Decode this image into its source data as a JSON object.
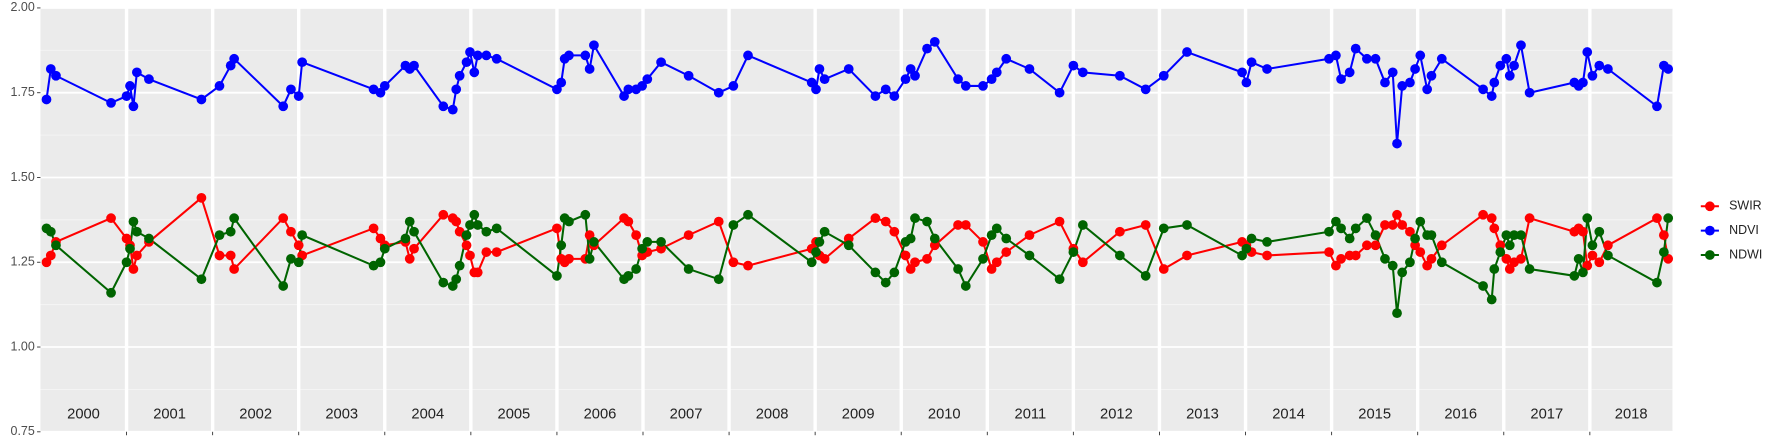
{
  "chart_data": {
    "type": "line",
    "x": [
      2000.07,
      2000.12,
      2000.18,
      2000.82,
      2001.0,
      2001.04,
      2001.08,
      2001.12,
      2001.26,
      2001.87,
      2002.08,
      2002.21,
      2002.25,
      2002.82,
      2002.91,
      2003.0,
      2003.04,
      2003.87,
      2003.95,
      2004.0,
      2004.24,
      2004.29,
      2004.34,
      2004.68,
      2004.79,
      2004.83,
      2004.87,
      2004.95,
      2004.99,
      2005.04,
      2005.08,
      2005.18,
      2005.3,
      2006.0,
      2006.05,
      2006.09,
      2006.14,
      2006.33,
      2006.38,
      2006.43,
      2006.78,
      2006.83,
      2006.92,
      2006.99,
      2007.05,
      2007.21,
      2007.53,
      2007.88,
      2008.05,
      2008.22,
      2008.96,
      2009.01,
      2009.05,
      2009.11,
      2009.39,
      2009.7,
      2009.82,
      2009.92,
      2010.05,
      2010.11,
      2010.16,
      2010.3,
      2010.39,
      2010.66,
      2010.75,
      2010.95,
      2011.05,
      2011.11,
      2011.22,
      2011.49,
      2011.84,
      2012.0,
      2012.11,
      2012.54,
      2012.84,
      2013.05,
      2013.32,
      2013.96,
      2014.01,
      2014.07,
      2014.25,
      2014.97,
      2015.05,
      2015.11,
      2015.21,
      2015.28,
      2015.41,
      2015.51,
      2015.62,
      2015.71,
      2015.76,
      2015.82,
      2015.91,
      2015.97,
      2016.03,
      2016.11,
      2016.16,
      2016.28,
      2016.76,
      2016.86,
      2016.89,
      2016.96,
      2017.03,
      2017.07,
      2017.12,
      2017.2,
      2017.3,
      2017.82,
      2017.87,
      2017.92,
      2017.97,
      2018.03,
      2018.11,
      2018.21,
      2018.78,
      2018.86,
      2018.91
    ],
    "series": [
      {
        "name": "SWIR",
        "color": "#ff0000",
        "values": [
          1.25,
          1.27,
          1.31,
          1.38,
          1.32,
          1.3,
          1.23,
          1.27,
          1.31,
          1.44,
          1.27,
          1.27,
          1.23,
          1.38,
          1.34,
          1.3,
          1.27,
          1.35,
          1.32,
          1.3,
          1.31,
          1.26,
          1.29,
          1.39,
          1.38,
          1.37,
          1.34,
          1.3,
          1.27,
          1.22,
          1.22,
          1.28,
          1.28,
          1.35,
          1.26,
          1.25,
          1.26,
          1.26,
          1.33,
          1.3,
          1.38,
          1.37,
          1.33,
          1.27,
          1.28,
          1.29,
          1.33,
          1.37,
          1.25,
          1.24,
          1.29,
          1.31,
          1.27,
          1.26,
          1.32,
          1.38,
          1.37,
          1.34,
          1.27,
          1.23,
          1.25,
          1.26,
          1.3,
          1.36,
          1.36,
          1.31,
          1.23,
          1.25,
          1.28,
          1.33,
          1.37,
          1.29,
          1.25,
          1.34,
          1.36,
          1.23,
          1.27,
          1.31,
          1.3,
          1.28,
          1.27,
          1.28,
          1.24,
          1.26,
          1.27,
          1.27,
          1.3,
          1.3,
          1.36,
          1.36,
          1.39,
          1.36,
          1.34,
          1.3,
          1.28,
          1.24,
          1.26,
          1.3,
          1.39,
          1.38,
          1.35,
          1.3,
          1.26,
          1.23,
          1.25,
          1.26,
          1.38,
          1.34,
          1.35,
          1.34,
          1.24,
          1.27,
          1.25,
          1.3,
          1.38,
          1.33,
          1.26
        ]
      },
      {
        "name": "NDVI",
        "color": "#0000ff",
        "values": [
          1.73,
          1.82,
          1.8,
          1.72,
          1.74,
          1.77,
          1.71,
          1.81,
          1.79,
          1.73,
          1.77,
          1.83,
          1.85,
          1.71,
          1.76,
          1.74,
          1.84,
          1.76,
          1.75,
          1.77,
          1.83,
          1.82,
          1.83,
          1.71,
          1.7,
          1.76,
          1.8,
          1.84,
          1.87,
          1.81,
          1.86,
          1.86,
          1.85,
          1.76,
          1.78,
          1.85,
          1.86,
          1.86,
          1.82,
          1.89,
          1.74,
          1.76,
          1.76,
          1.77,
          1.79,
          1.84,
          1.8,
          1.75,
          1.77,
          1.86,
          1.78,
          1.76,
          1.82,
          1.79,
          1.82,
          1.74,
          1.76,
          1.74,
          1.79,
          1.82,
          1.8,
          1.88,
          1.9,
          1.79,
          1.77,
          1.77,
          1.79,
          1.81,
          1.85,
          1.82,
          1.75,
          1.83,
          1.81,
          1.8,
          1.76,
          1.8,
          1.87,
          1.81,
          1.78,
          1.84,
          1.82,
          1.85,
          1.86,
          1.79,
          1.81,
          1.88,
          1.85,
          1.85,
          1.78,
          1.81,
          1.6,
          1.77,
          1.78,
          1.82,
          1.86,
          1.76,
          1.8,
          1.85,
          1.76,
          1.74,
          1.78,
          1.83,
          1.85,
          1.8,
          1.83,
          1.89,
          1.75,
          1.78,
          1.77,
          1.78,
          1.87,
          1.8,
          1.83,
          1.82,
          1.71,
          1.83,
          1.82
        ]
      },
      {
        "name": "NDWI",
        "color": "#006400",
        "values": [
          1.35,
          1.34,
          1.3,
          1.16,
          1.25,
          1.29,
          1.37,
          1.34,
          1.32,
          1.2,
          1.33,
          1.34,
          1.38,
          1.18,
          1.26,
          1.25,
          1.33,
          1.24,
          1.25,
          1.29,
          1.32,
          1.37,
          1.34,
          1.19,
          1.18,
          1.2,
          1.24,
          1.33,
          1.36,
          1.39,
          1.36,
          1.34,
          1.35,
          1.21,
          1.3,
          1.38,
          1.37,
          1.39,
          1.26,
          1.31,
          1.2,
          1.21,
          1.23,
          1.29,
          1.31,
          1.31,
          1.23,
          1.2,
          1.36,
          1.39,
          1.25,
          1.28,
          1.31,
          1.34,
          1.3,
          1.22,
          1.19,
          1.22,
          1.31,
          1.32,
          1.38,
          1.37,
          1.32,
          1.23,
          1.18,
          1.26,
          1.33,
          1.35,
          1.32,
          1.27,
          1.2,
          1.28,
          1.36,
          1.27,
          1.21,
          1.35,
          1.36,
          1.27,
          1.29,
          1.32,
          1.31,
          1.34,
          1.37,
          1.35,
          1.32,
          1.35,
          1.38,
          1.33,
          1.26,
          1.24,
          1.1,
          1.22,
          1.25,
          1.32,
          1.37,
          1.33,
          1.33,
          1.25,
          1.18,
          1.14,
          1.23,
          1.28,
          1.33,
          1.3,
          1.33,
          1.33,
          1.23,
          1.21,
          1.26,
          1.22,
          1.38,
          1.3,
          1.34,
          1.27,
          1.19,
          1.28,
          1.38
        ]
      }
    ],
    "xlim": [
      2000,
      2018.96
    ],
    "xticks": [
      2001,
      2002,
      2003,
      2004,
      2005,
      2006,
      2007,
      2008,
      2009,
      2010,
      2011,
      2012,
      2013,
      2014,
      2015,
      2016,
      2017,
      2018
    ],
    "ylim": [
      0.75,
      2.0
    ],
    "yticks": [
      {
        "value": 0.75,
        "label": "0.75"
      },
      {
        "value": 1.0,
        "label": "1.00"
      },
      {
        "value": 1.25,
        "label": "1.25"
      },
      {
        "value": 1.5,
        "label": "1.50"
      },
      {
        "value": 1.75,
        "label": "1.75"
      },
      {
        "value": 2.0,
        "label": "2.00"
      }
    ],
    "annotations": [
      "2000",
      "2001",
      "2002",
      "2003",
      "2004",
      "2005",
      "2006",
      "2007",
      "2008",
      "2009",
      "2010",
      "2011",
      "2012",
      "2013",
      "2014",
      "2015",
      "2016",
      "2017",
      "2018"
    ],
    "grid": true,
    "legend": "right"
  }
}
